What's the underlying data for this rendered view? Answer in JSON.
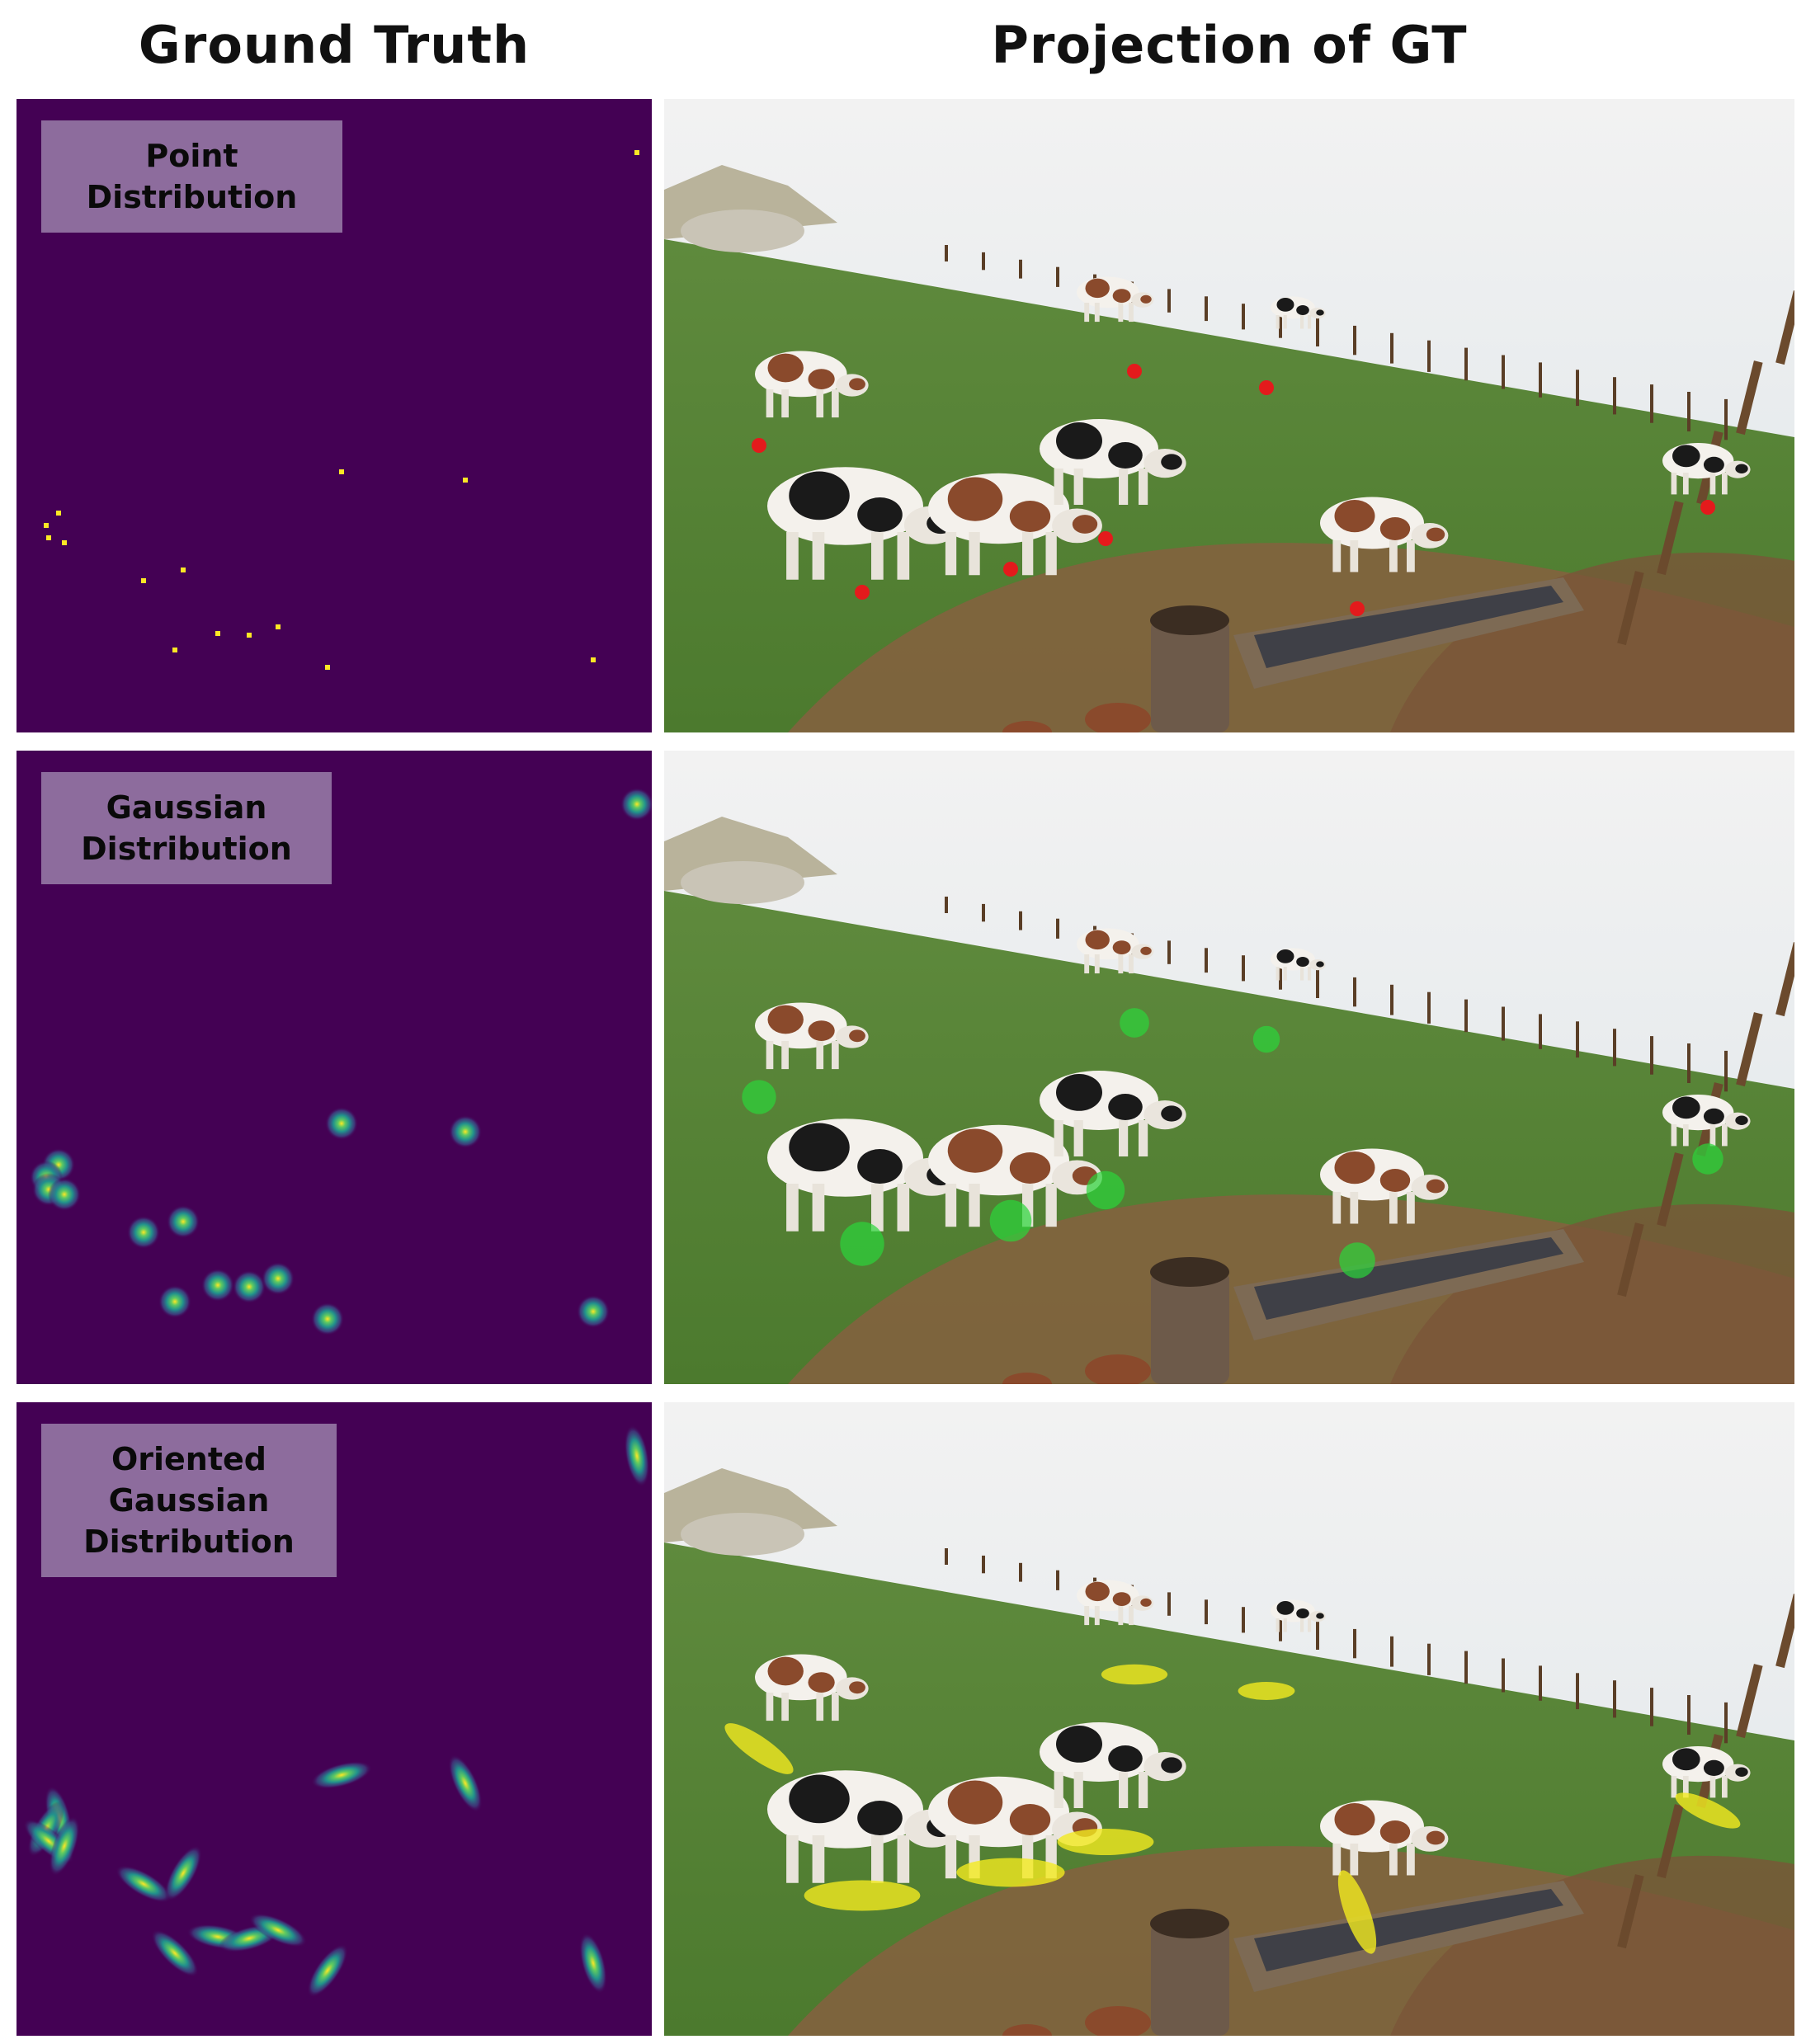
{
  "header": {
    "left_title": "Ground Truth",
    "right_title": "Projection of GT"
  },
  "rows": [
    {
      "label_lines": [
        "Point",
        "Distribution"
      ],
      "marker_color": "#e41a1c"
    },
    {
      "label_lines": [
        "Gaussian",
        "Distribution"
      ],
      "marker_color": "#2bd53a"
    },
    {
      "label_lines": [
        "Oriented",
        "Gaussian",
        "Distribution"
      ],
      "marker_color": "#f3ea1f"
    }
  ],
  "colors": {
    "density_background": "#440154",
    "point_color": "#fde725",
    "gaussian_mid": "#21918c",
    "label_box": "#8d6c9d"
  }
}
